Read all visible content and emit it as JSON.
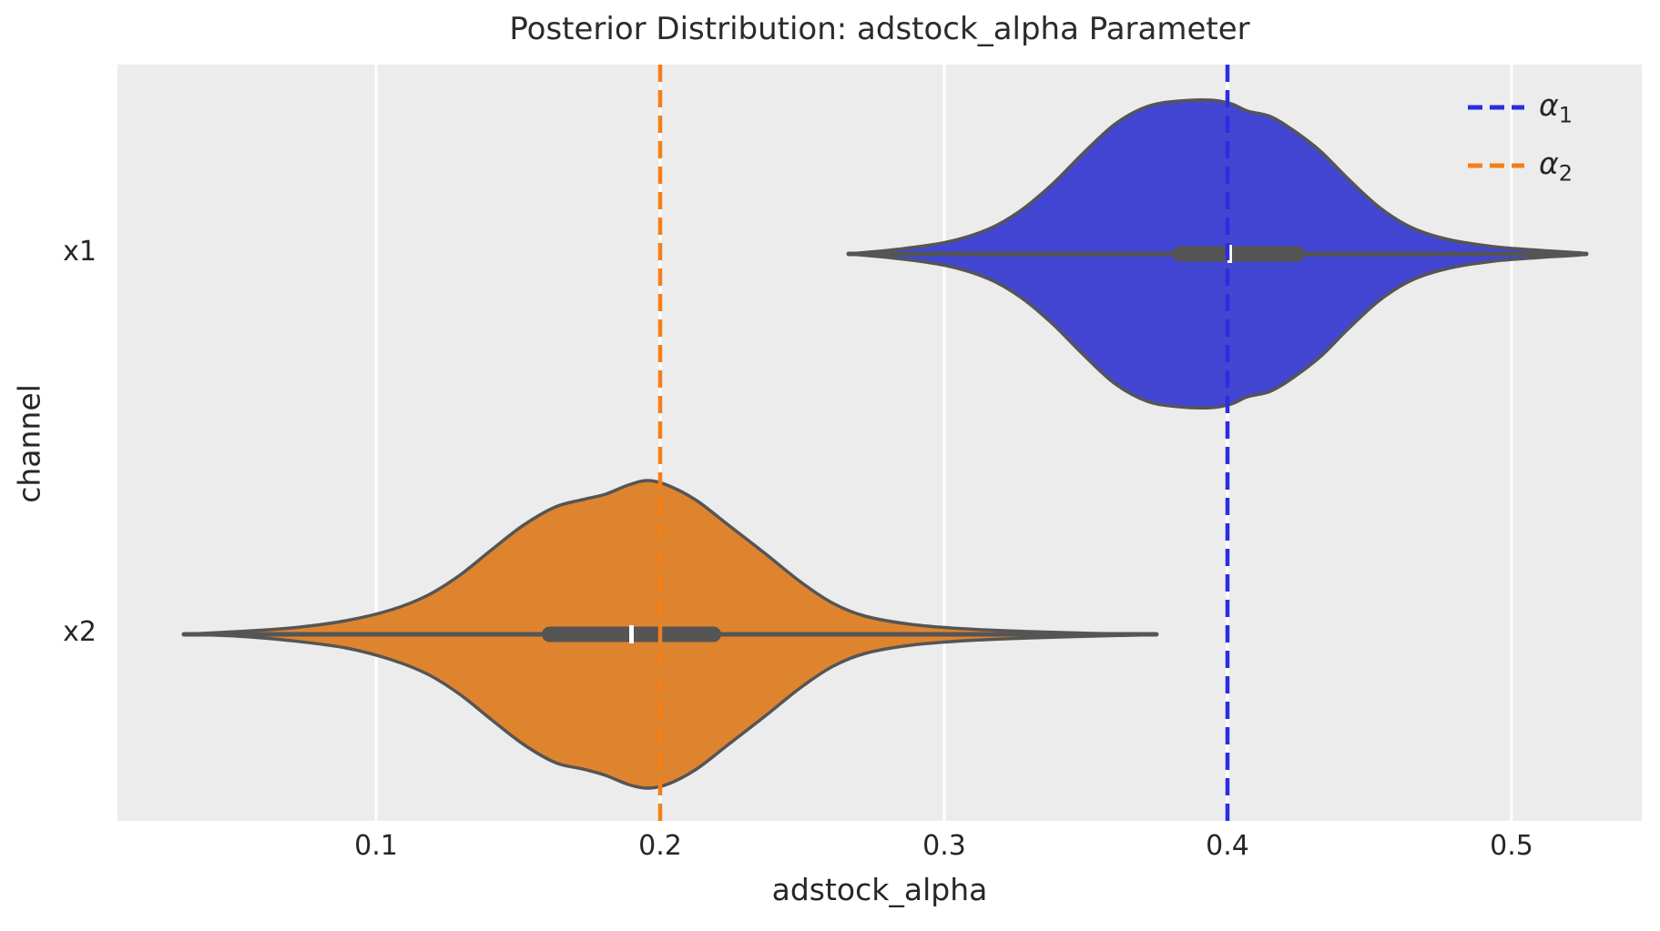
{
  "figure": {
    "title": "Posterior Distribution: adstock_alpha Parameter",
    "x_axis": {
      "label": "adstock_alpha",
      "ticks": [
        "0.1",
        "0.2",
        "0.3",
        "0.4",
        "0.5"
      ]
    },
    "y_axis": {
      "label": "channel",
      "ticks": [
        "x1",
        "x2"
      ]
    },
    "legend": {
      "position": "upper right",
      "items": [
        {
          "symbol": "α",
          "sub": "1",
          "line_color": "#2a2de0",
          "line_style": "dashed"
        },
        {
          "symbol": "α",
          "sub": "2",
          "line_color": "#f57f17",
          "line_style": "dashed"
        }
      ]
    },
    "colors": {
      "plot_background": "#ececec",
      "gridline": "#ffffff",
      "violin_x1_fill": "#4246d2",
      "violin_x2_fill": "#df842e",
      "violin_edge": "#555555",
      "box_whisker": "#555555",
      "median_tick": "#ffffff",
      "ref_line_alpha1": "#2a2de0",
      "ref_line_alpha2": "#f57f17",
      "text": "#262626"
    }
  },
  "chart_data": {
    "type": "violin",
    "orientation": "horizontal",
    "title": "Posterior Distribution: adstock_alpha Parameter",
    "xlabel": "adstock_alpha",
    "ylabel": "channel",
    "categories": [
      "x1",
      "x2"
    ],
    "x_ticks": [
      0.1,
      0.2,
      0.3,
      0.4,
      0.5
    ],
    "x_range": [
      0.01,
      0.546
    ],
    "grid": "vertical white gridlines on light gray background",
    "series": [
      {
        "channel": "x1",
        "fill_color": "#4246d2",
        "median": 0.401,
        "q1": 0.38,
        "q3": 0.427,
        "whisker_low": 0.265,
        "whisker_high": 0.525,
        "density_peak": 0.398,
        "kde_support": [
          0.265,
          0.526
        ]
      },
      {
        "channel": "x2",
        "fill_color": "#df842e",
        "median": 0.19,
        "q1": 0.158,
        "q3": 0.221,
        "whisker_low": 0.032,
        "whisker_high": 0.375,
        "density_peak": 0.195,
        "kde_support": [
          0.032,
          0.375
        ]
      }
    ],
    "reference_lines": [
      {
        "label": "α1",
        "value": 0.4,
        "color": "#2a2de0",
        "style": "dashed",
        "legend_entry": true
      },
      {
        "label": "α2",
        "value": 0.2,
        "color": "#f57f17",
        "style": "dashed",
        "legend_entry": true
      }
    ],
    "legend": {
      "position": "upper right",
      "entries": [
        "α1",
        "α2"
      ]
    }
  }
}
